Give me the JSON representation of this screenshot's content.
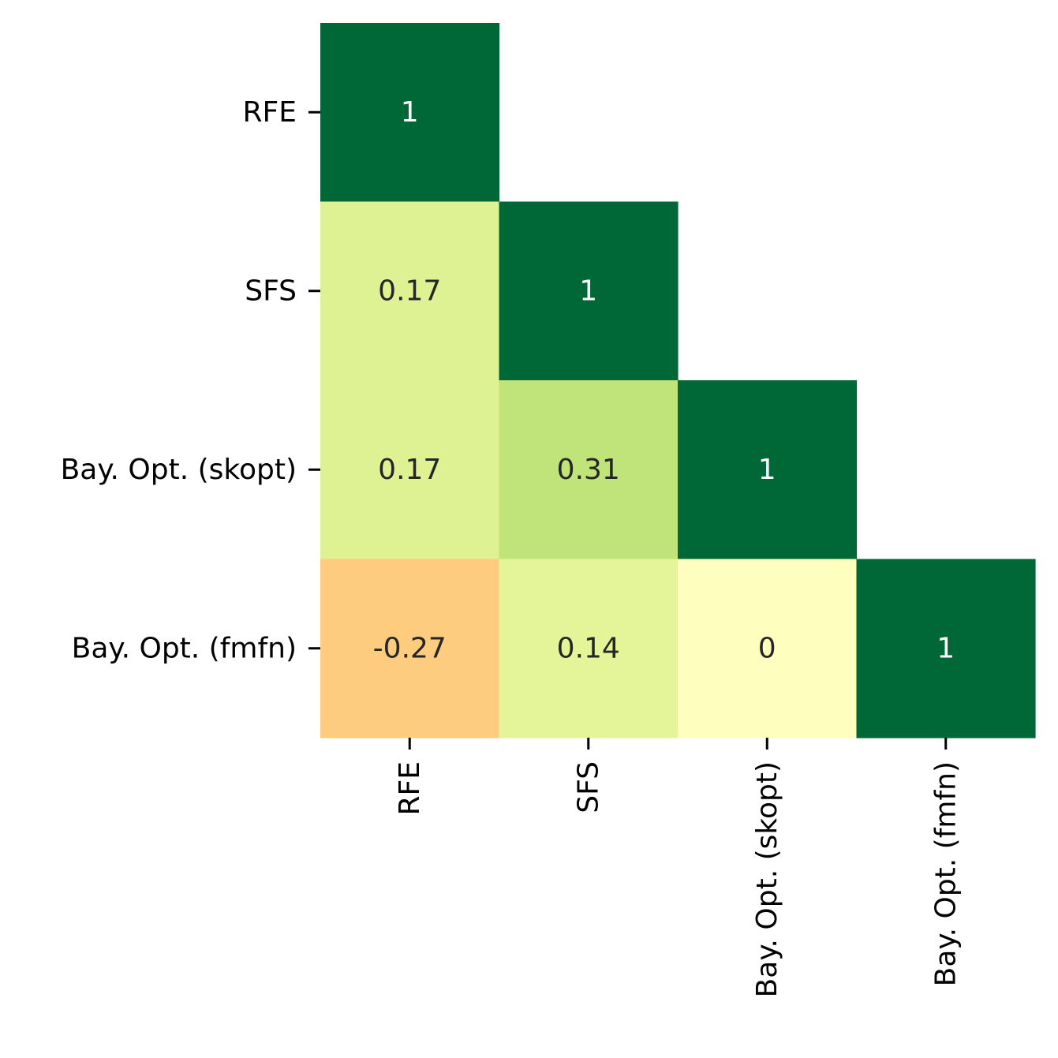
{
  "chart_data": {
    "type": "heatmap",
    "title": "",
    "xlabel": "",
    "ylabel": "",
    "mask": "upper-triangle",
    "rows": [
      "RFE",
      "SFS",
      "Bay. Opt. (skopt)",
      "Bay. Opt. (fmfn)"
    ],
    "columns": [
      "RFE",
      "SFS",
      "Bay. Opt. (skopt)",
      "Bay. Opt. (fmfn)"
    ],
    "cells": [
      {
        "row": 0,
        "col": 0,
        "value": 1,
        "label": "1",
        "color": "#006837",
        "text_color": "#ffffff"
      },
      {
        "row": 1,
        "col": 0,
        "value": 0.17,
        "label": "0.17",
        "color": "#dff293",
        "text_color": "#262626"
      },
      {
        "row": 1,
        "col": 1,
        "value": 1,
        "label": "1",
        "color": "#006837",
        "text_color": "#ffffff"
      },
      {
        "row": 2,
        "col": 0,
        "value": 0.17,
        "label": "0.17",
        "color": "#dff293",
        "text_color": "#262626"
      },
      {
        "row": 2,
        "col": 1,
        "value": 0.31,
        "label": "0.31",
        "color": "#c0e47a",
        "text_color": "#262626"
      },
      {
        "row": 2,
        "col": 2,
        "value": 1,
        "label": "1",
        "color": "#006837",
        "text_color": "#ffffff"
      },
      {
        "row": 3,
        "col": 0,
        "value": -0.27,
        "label": "-0.27",
        "color": "#fdcc7f",
        "text_color": "#262626"
      },
      {
        "row": 3,
        "col": 1,
        "value": 0.14,
        "label": "0.14",
        "color": "#e4f499",
        "text_color": "#262626"
      },
      {
        "row": 3,
        "col": 2,
        "value": 0,
        "label": "0",
        "color": "#feffbe",
        "text_color": "#262626"
      },
      {
        "row": 3,
        "col": 3,
        "value": 1,
        "label": "1",
        "color": "#006837",
        "text_color": "#ffffff"
      }
    ]
  }
}
